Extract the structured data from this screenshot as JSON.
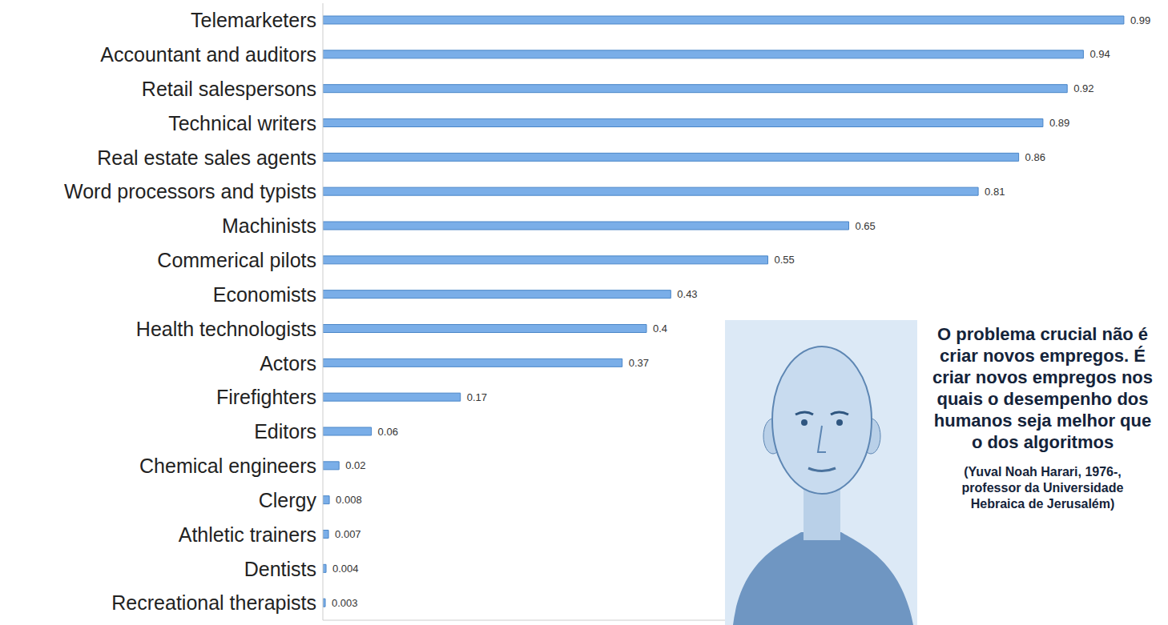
{
  "chart_data": {
    "type": "bar",
    "orientation": "horizontal",
    "categories": [
      "Telemarketers",
      "Accountant and auditors",
      "Retail salespersons",
      "Technical writers",
      "Real estate sales agents",
      "Word processors and typists",
      "Machinists",
      "Commerical pilots",
      "Economists",
      "Health technologists",
      "Actors",
      "Firefighters",
      "Editors",
      "Chemical engineers",
      "Clergy",
      "Athletic trainers",
      "Dentists",
      "Recreational therapists"
    ],
    "values": [
      0.99,
      0.94,
      0.92,
      0.89,
      0.86,
      0.81,
      0.65,
      0.55,
      0.43,
      0.4,
      0.37,
      0.17,
      0.06,
      0.02,
      0.008,
      0.007,
      0.004,
      0.003
    ],
    "color": "#7aaee8",
    "xlim": [
      0,
      1
    ],
    "grid": false,
    "data_labels": true,
    "tick_labels": "y",
    "annotations": [
      "O problema crucial não é criar novos empregos. É criar novos empregos nos quais o desempenho dos humanos seja melhor que o dos algoritmos",
      "(Yuval Noah Harari, 1976-, professor da Universidade Hebraica de Jerusalém)"
    ]
  }
}
